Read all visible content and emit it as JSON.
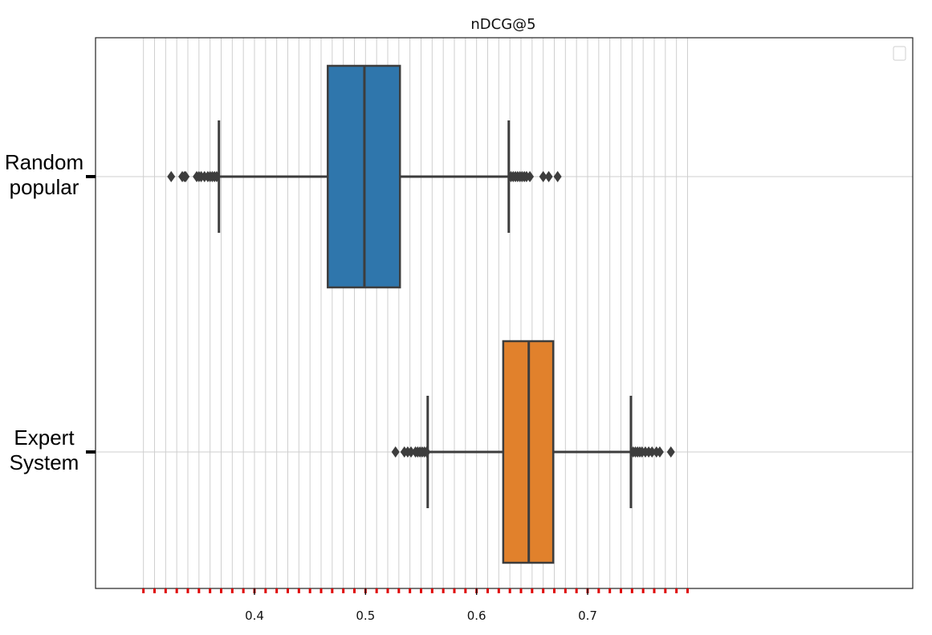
{
  "chart_data": {
    "type": "boxplot",
    "orientation": "horizontal",
    "title": "nDCG@5",
    "xlim": [
      0.3,
      0.795
    ],
    "xticks": [
      0.4,
      0.5,
      0.6,
      0.7
    ],
    "xtick_labels": [
      "0.4",
      "0.5",
      "0.6",
      "0.7"
    ],
    "minor_tick_step": 0.01,
    "grid": true,
    "legend": "top-right (empty)",
    "categories": [
      "Random\npopular",
      "Expert\nSystem"
    ],
    "series": [
      {
        "name": "Random popular",
        "color": "#2f76ac",
        "whisker_low": 0.368,
        "q1": 0.466,
        "median": 0.499,
        "q3": 0.531,
        "whisker_high": 0.629,
        "outliers": [
          0.325,
          0.335,
          0.337,
          0.338,
          0.348,
          0.35,
          0.352,
          0.355,
          0.358,
          0.36,
          0.362,
          0.364,
          0.366,
          0.631,
          0.633,
          0.635,
          0.637,
          0.639,
          0.641,
          0.643,
          0.645,
          0.648,
          0.66,
          0.665,
          0.673
        ]
      },
      {
        "name": "Expert System",
        "color": "#e1812c",
        "whisker_low": 0.556,
        "q1": 0.624,
        "median": 0.647,
        "q3": 0.669,
        "whisker_high": 0.739,
        "outliers": [
          0.527,
          0.535,
          0.538,
          0.541,
          0.545,
          0.547,
          0.549,
          0.551,
          0.553,
          0.555,
          0.741,
          0.743,
          0.745,
          0.747,
          0.749,
          0.752,
          0.755,
          0.758,
          0.762,
          0.765,
          0.775
        ]
      }
    ]
  }
}
